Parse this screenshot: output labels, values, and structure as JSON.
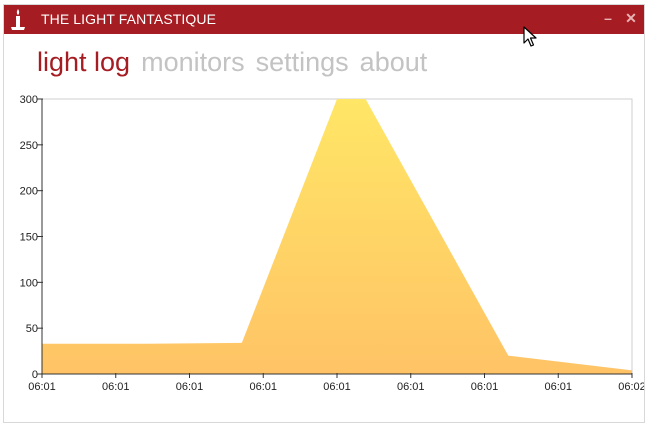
{
  "window": {
    "title": "THE LIGHT FANTASTIQUE",
    "minimize_symbol": "–",
    "close_symbol": "✕",
    "accent_color": "#a51d22",
    "icon": "candle-icon"
  },
  "nav": {
    "tabs": [
      {
        "label": "light log",
        "active": true
      },
      {
        "label": "monitors",
        "active": false
      },
      {
        "label": "settings",
        "active": false
      },
      {
        "label": "about",
        "active": false
      }
    ],
    "active_color": "#a51d22",
    "inactive_color": "#c3c3c3"
  },
  "chart_data": {
    "type": "area",
    "x": [
      0,
      1.1,
      2.1,
      3.1,
      3.4,
      4.9,
      6.2
    ],
    "values": [
      33,
      33,
      34,
      300,
      300,
      20,
      4
    ],
    "xtick_positions": [
      0,
      0.775,
      1.55,
      2.325,
      3.1,
      3.875,
      4.65,
      5.425,
      6.2
    ],
    "xtick_labels": [
      "06:01",
      "06:01",
      "06:01",
      "06:01",
      "06:01",
      "06:01",
      "06:01",
      "06:01",
      "06:02"
    ],
    "yticks": [
      0,
      50,
      100,
      150,
      200,
      250,
      300
    ],
    "ylim": [
      0,
      300
    ],
    "xlim": [
      0,
      6.2
    ],
    "gradient_top": "#ffe666",
    "gradient_bottom": "#ffc366",
    "title": "",
    "xlabel": "",
    "ylabel": "",
    "grid": false
  }
}
